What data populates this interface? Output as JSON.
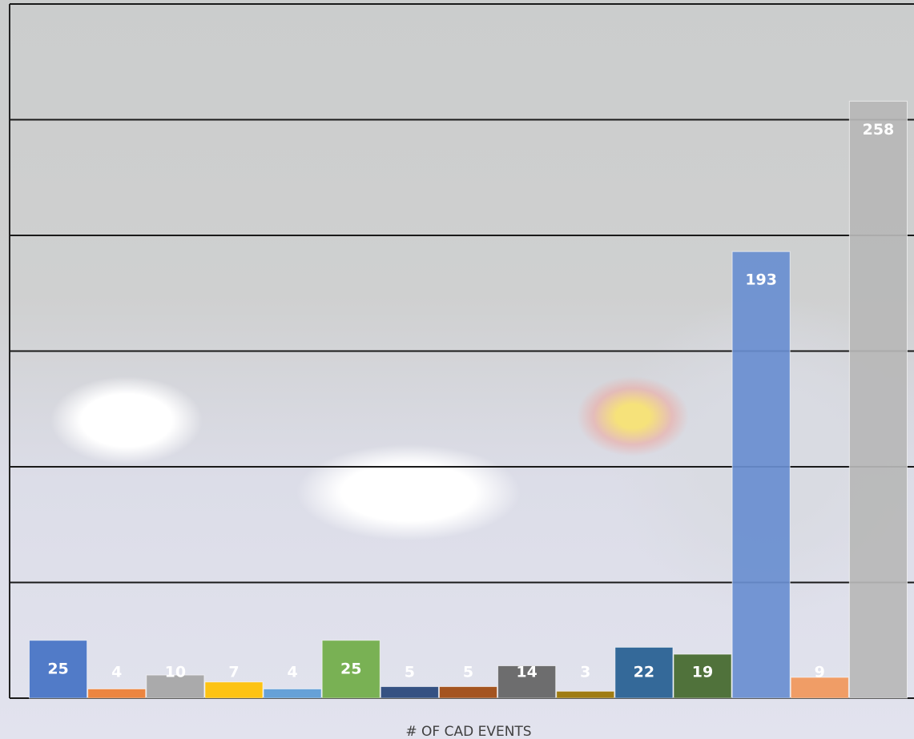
{
  "chart_data": {
    "type": "bar",
    "x_label": "# OF CAD EVENTS",
    "categories": [
      null,
      null,
      null,
      null,
      null,
      null,
      null,
      null,
      null,
      null,
      null,
      null,
      null,
      null,
      null
    ],
    "series": [
      {
        "values": [
          25,
          4,
          10,
          7,
          4,
          25,
          5,
          5,
          14,
          3,
          22,
          19,
          193,
          9,
          258
        ],
        "colors": [
          "#4472c4",
          "#ed7d31",
          "#a5a5a5",
          "#ffc000",
          "#5b9bd5",
          "#70ad47",
          "#264478",
          "#9e480e",
          "#636363",
          "#997300",
          "#255e91",
          "#43682b",
          "#698ed0",
          "#f1975a",
          "#b7b7b7"
        ]
      }
    ],
    "ylim": [
      0,
      300
    ],
    "yticks": [
      0,
      50,
      100,
      150,
      200,
      250,
      300
    ],
    "grid": true,
    "data_labels": true
  }
}
